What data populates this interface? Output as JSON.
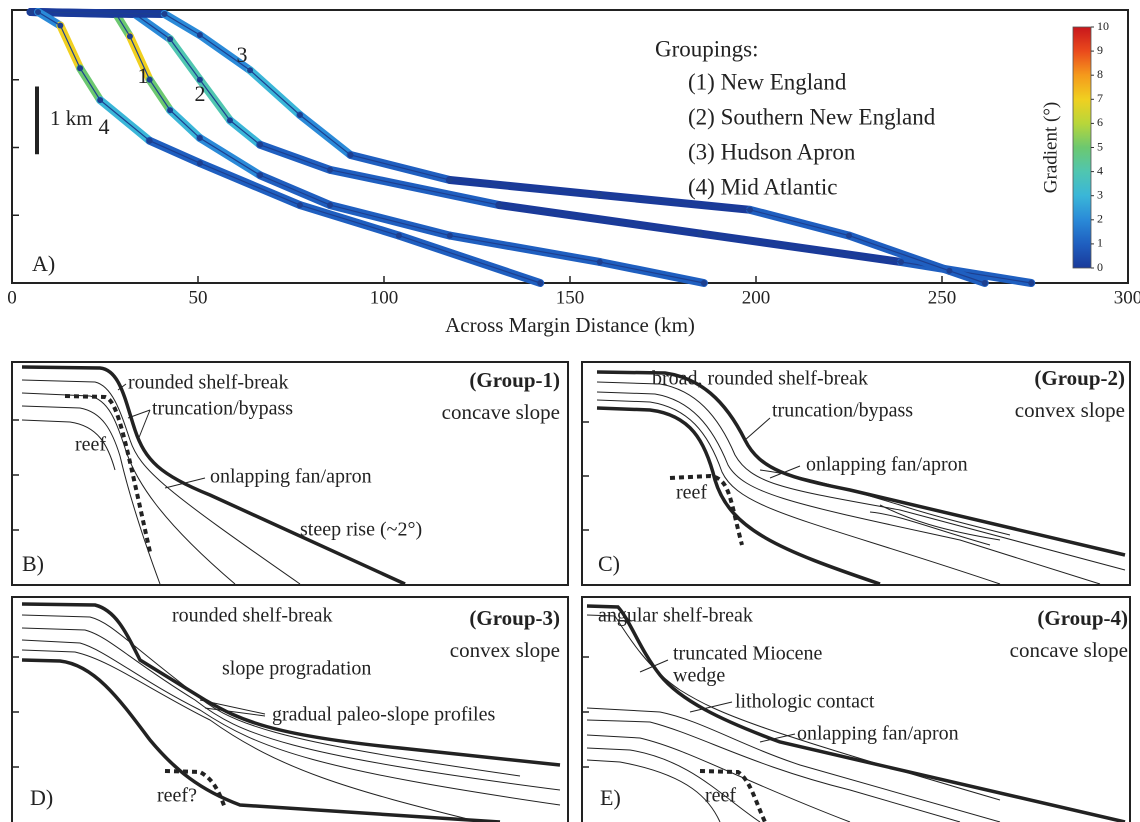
{
  "chart_data": {
    "type": "line",
    "panel_label": "A)",
    "x_label": "Across Margin Distance (km)",
    "xlim": [
      0,
      300
    ],
    "xticks": [
      0,
      50,
      100,
      150,
      200,
      250,
      300
    ],
    "ylim": [
      -4,
      0
    ],
    "yticks": [
      -1,
      -2,
      -3
    ],
    "scale_bar": {
      "label": "1 km",
      "length": 1
    },
    "legend_title": "Groupings:",
    "colorbar": {
      "label": "Gradient (°)",
      "lim": [
        0,
        10
      ],
      "ticks": [
        0,
        1,
        2,
        3,
        4,
        5,
        6,
        7,
        8,
        9,
        10
      ],
      "colors": [
        "#1a3a9a",
        "#1f5fc0",
        "#2a8ad8",
        "#3ab6d8",
        "#50c6b0",
        "#6cc870",
        "#b8d63a",
        "#f0d020",
        "#f59a1c",
        "#ea4a1c",
        "#c8161c"
      ]
    },
    "point_color": "#1d3f8f",
    "series": [
      {
        "name": "(1) New England",
        "label": "1",
        "x": [
          5,
          28,
          31.7,
          37,
          42.5,
          50.5,
          66.7,
          85.5,
          117.7,
          158,
          186
        ],
        "values": [
          0,
          -0.03,
          -0.36,
          -1.0,
          -1.45,
          -1.86,
          -2.41,
          -2.85,
          -3.3,
          -3.69,
          -4.0
        ]
      },
      {
        "name": "(2) Southern New England",
        "label": "2",
        "x": [
          5,
          33,
          42.5,
          50.5,
          58.6,
          66.7,
          85.5,
          131,
          185,
          239,
          274
        ],
        "values": [
          0,
          -0.03,
          -0.4,
          -1.0,
          -1.6,
          -1.96,
          -2.33,
          -2.85,
          -3.27,
          -3.69,
          -4.0
        ]
      },
      {
        "name": "(3) Hudson Apron",
        "label": "3",
        "x": [
          5,
          41,
          50.5,
          64,
          77.4,
          91,
          117.7,
          158,
          198.4,
          225,
          252,
          261.5
        ],
        "values": [
          0,
          -0.03,
          -0.34,
          -0.86,
          -1.52,
          -2.11,
          -2.48,
          -2.7,
          -2.92,
          -3.3,
          -3.82,
          -4.0
        ]
      },
      {
        "name": "(4) Mid Atlantic",
        "label": "4",
        "x": [
          7,
          13,
          18.3,
          23.7,
          37,
          50.5,
          77.4,
          104,
          142
        ],
        "values": [
          0,
          -0.2,
          -0.83,
          -1.3,
          -1.9,
          -2.23,
          -2.85,
          -3.3,
          -4.0
        ]
      }
    ]
  },
  "panels": [
    {
      "label": "B)",
      "title": "(Group-1)",
      "subtitle": "concave slope",
      "annotations": [
        "rounded shelf-break",
        "truncation/bypass",
        "reef",
        "onlapping fan/apron",
        "steep rise (~2°)"
      ]
    },
    {
      "label": "C)",
      "title": "(Group-2)",
      "subtitle": "convex slope",
      "annotations": [
        "broad, rounded shelf-break",
        "truncation/bypass",
        "onlapping fan/apron",
        "reef"
      ]
    },
    {
      "label": "D)",
      "title": "(Group-3)",
      "subtitle": "convex slope",
      "annotations": [
        "rounded shelf-break",
        "slope progradation",
        "gradual paleo-slope profiles",
        "reef?"
      ]
    },
    {
      "label": "E)",
      "title": "(Group-4)",
      "subtitle": "concave slope",
      "annotations": [
        "angular shelf-break",
        "truncated Miocene",
        "wedge",
        "lithologic contact",
        "onlapping fan/apron",
        "reef"
      ]
    }
  ]
}
